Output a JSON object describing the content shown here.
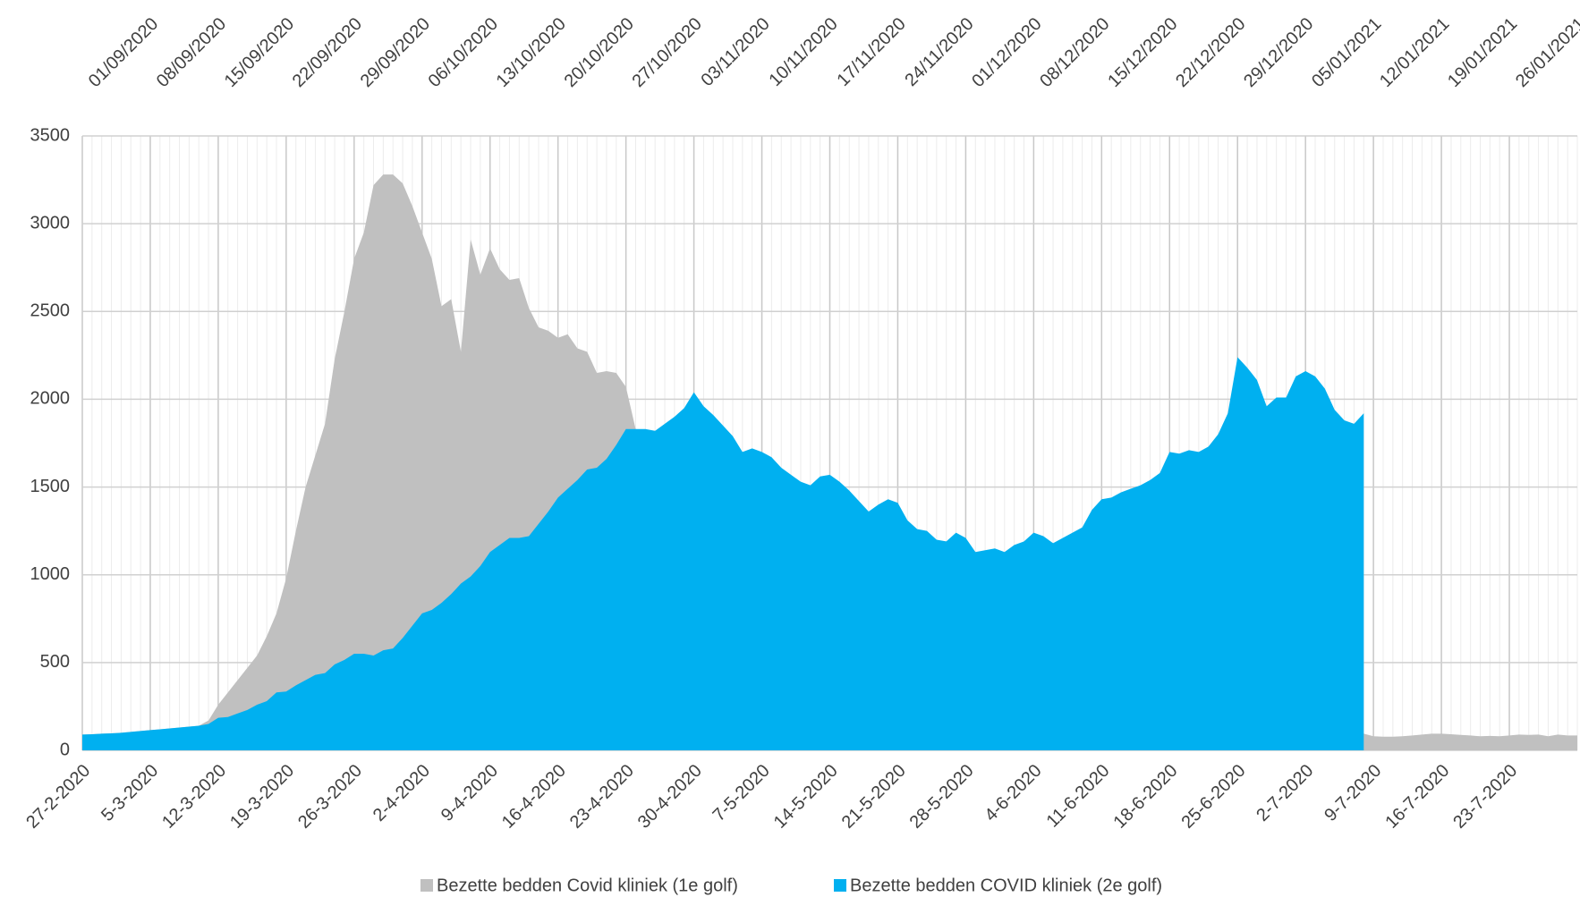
{
  "chart_data": {
    "type": "area",
    "categories": [
      "27-2-2020",
      null,
      null,
      null,
      null,
      null,
      null,
      "5-3-2020",
      null,
      null,
      null,
      null,
      null,
      null,
      "12-3-2020",
      null,
      null,
      null,
      null,
      null,
      null,
      "19-3-2020",
      null,
      null,
      null,
      null,
      null,
      null,
      "26-3-2020",
      null,
      null,
      null,
      null,
      null,
      null,
      "2-4-2020",
      null,
      null,
      null,
      null,
      null,
      null,
      "9-4-2020",
      null,
      null,
      null,
      null,
      null,
      null,
      "16-4-2020",
      null,
      null,
      null,
      null,
      null,
      null,
      "23-4-2020",
      null,
      null,
      null,
      null,
      null,
      null,
      "30-4-2020",
      null,
      null,
      null,
      null,
      null,
      null,
      "7-5-2020",
      null,
      null,
      null,
      null,
      null,
      null,
      "14-5-2020",
      null,
      null,
      null,
      null,
      null,
      null,
      "21-5-2020",
      null,
      null,
      null,
      null,
      null,
      null,
      "28-5-2020",
      null,
      null,
      null,
      null,
      null,
      null,
      "4-6-2020",
      null,
      null,
      null,
      null,
      null,
      null,
      "11-6-2020",
      null,
      null,
      null,
      null,
      null,
      null,
      "18-6-2020",
      null,
      null,
      null,
      null,
      null,
      null,
      "25-6-2020",
      null,
      null,
      null,
      null,
      null,
      null,
      "2-7-2020",
      null,
      null,
      null,
      null,
      null,
      null,
      "9-7-2020",
      null,
      null,
      null,
      null,
      null,
      null,
      "16-7-2020",
      null,
      null,
      null,
      null,
      null,
      null,
      "23-7-2020",
      null,
      null,
      null,
      null,
      null,
      null,
      null
    ],
    "x2_categories": [
      null,
      null,
      null,
      null,
      null,
      null,
      null,
      "01/09/2020",
      null,
      null,
      null,
      null,
      null,
      null,
      "08/09/2020",
      null,
      null,
      null,
      null,
      null,
      null,
      "15/09/2020",
      null,
      null,
      null,
      null,
      null,
      null,
      "22/09/2020",
      null,
      null,
      null,
      null,
      null,
      null,
      "29/09/2020",
      null,
      null,
      null,
      null,
      null,
      null,
      "06/10/2020",
      null,
      null,
      null,
      null,
      null,
      null,
      "13/10/2020",
      null,
      null,
      null,
      null,
      null,
      null,
      "20/10/2020",
      null,
      null,
      null,
      null,
      null,
      null,
      "27/10/2020",
      null,
      null,
      null,
      null,
      null,
      null,
      "03/11/2020",
      null,
      null,
      null,
      null,
      null,
      null,
      "10/11/2020",
      null,
      null,
      null,
      null,
      null,
      null,
      "17/11/2020",
      null,
      null,
      null,
      null,
      null,
      null,
      "24/11/2020",
      null,
      null,
      null,
      null,
      null,
      null,
      "01/12/2020",
      null,
      null,
      null,
      null,
      null,
      null,
      "08/12/2020",
      null,
      null,
      null,
      null,
      null,
      null,
      "15/12/2020",
      null,
      null,
      null,
      null,
      null,
      null,
      "22/12/2020",
      null,
      null,
      null,
      null,
      null,
      null,
      "29/12/2020",
      null,
      null,
      null,
      null,
      null,
      null,
      "05/01/2021",
      null,
      null,
      null,
      null,
      null,
      null,
      "12/01/2021",
      null,
      null,
      null,
      null,
      null,
      null,
      "19/01/2021",
      null,
      null,
      null,
      null,
      null,
      null,
      "26/01/2021"
    ],
    "series": [
      {
        "name": "Bezette bedden Covid kliniek (1e golf)",
        "color": "#c0c0c0",
        "values": [
          90,
          92,
          95,
          97,
          100,
          105,
          110,
          115,
          120,
          125,
          130,
          135,
          140,
          170,
          260,
          330,
          400,
          470,
          540,
          650,
          780,
          980,
          1250,
          1500,
          1680,
          1860,
          2230,
          2500,
          2800,
          2950,
          3220,
          3280,
          3280,
          3230,
          3100,
          2950,
          2800,
          2530,
          2570,
          2270,
          2910,
          2710,
          2860,
          2740,
          2680,
          2690,
          2520,
          2410,
          2390,
          2350,
          2370,
          2290,
          2270,
          2150,
          2160,
          2150,
          2070,
          1830,
          1780,
          1730,
          1690,
          1650,
          1600,
          1560,
          1520,
          1480,
          1440,
          1400,
          1360,
          1320,
          1280,
          1240,
          1200,
          1160,
          1120,
          1090,
          1050,
          1010,
          980,
          950,
          920,
          890,
          860,
          830,
          800,
          770,
          740,
          710,
          690,
          660,
          640,
          610,
          590,
          570,
          550,
          530,
          510,
          490,
          470,
          450,
          430,
          410,
          400,
          380,
          360,
          350,
          330,
          320,
          300,
          290,
          270,
          260,
          250,
          240,
          230,
          220,
          210,
          200,
          190,
          180,
          170,
          160,
          155,
          150,
          140,
          135,
          130,
          125,
          120,
          115,
          110,
          100,
          95,
          80,
          78,
          78,
          80,
          85,
          90,
          95,
          95,
          92,
          88,
          85,
          80,
          82,
          80,
          85,
          90,
          88,
          90,
          80,
          90,
          85,
          85
        ]
      },
      {
        "name": "Bezette bedden COVID kliniek (2e golf)",
        "color": "#00b0f0",
        "values": [
          90,
          92,
          95,
          97,
          100,
          105,
          110,
          115,
          120,
          125,
          130,
          135,
          140,
          150,
          185,
          190,
          210,
          230,
          260,
          280,
          330,
          335,
          370,
          400,
          430,
          440,
          490,
          515,
          550,
          550,
          540,
          570,
          580,
          640,
          710,
          780,
          800,
          840,
          890,
          950,
          990,
          1050,
          1130,
          1170,
          1210,
          1210,
          1220,
          1290,
          1360,
          1440,
          1490,
          1540,
          1600,
          1610,
          1660,
          1740,
          1830,
          1830,
          1830,
          1820,
          1860,
          1900,
          1950,
          2040,
          1960,
          1910,
          1850,
          1790,
          1700,
          1720,
          1700,
          1670,
          1610,
          1570,
          1530,
          1510,
          1560,
          1570,
          1530,
          1480,
          1420,
          1360,
          1400,
          1430,
          1410,
          1310,
          1260,
          1250,
          1200,
          1190,
          1240,
          1210,
          1130,
          1140,
          1150,
          1130,
          1170,
          1190,
          1240,
          1220,
          1180,
          1210,
          1240,
          1270,
          1370,
          1430,
          1440,
          1470,
          1490,
          1510,
          1540,
          1580,
          1700,
          1690,
          1710,
          1700,
          1730,
          1800,
          1920,
          2240,
          2180,
          2110,
          1960,
          2010,
          2010,
          2130,
          2160,
          2130,
          2060,
          1940,
          1880,
          1860,
          1920,
          null,
          null,
          null,
          null,
          null,
          null,
          null,
          null,
          null,
          null,
          null,
          null,
          null,
          null,
          null,
          null,
          null,
          null,
          null,
          null,
          null,
          null
        ]
      }
    ],
    "ylim": [
      0,
      3500
    ],
    "yticks": [
      0,
      500,
      1000,
      1500,
      2000,
      2500,
      3000,
      3500
    ],
    "grid": true,
    "legend": "bottom"
  }
}
